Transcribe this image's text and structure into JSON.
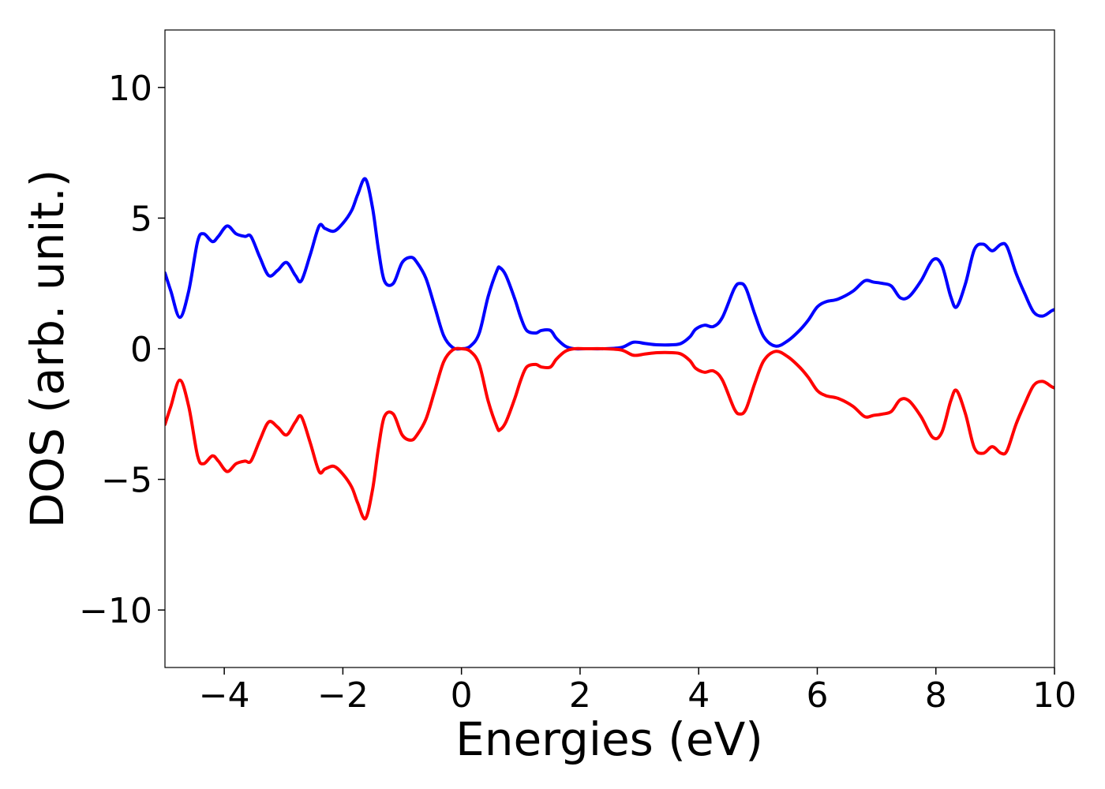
{
  "chart_data": {
    "type": "line",
    "xlabel": "Energies (eV)",
    "ylabel": "DOS (arb. unit.)",
    "xlim": [
      -5,
      10
    ],
    "ylim": [
      -12.2,
      12.2
    ],
    "xticks": [
      -4,
      -2,
      0,
      2,
      4,
      6,
      8,
      10
    ],
    "xtick_labels": [
      "−4",
      "−2",
      "0",
      "2",
      "4",
      "6",
      "8",
      "10"
    ],
    "yticks": [
      -10,
      -5,
      0,
      5,
      10
    ],
    "ytick_labels": [
      "−10",
      "−5",
      "0",
      "5",
      "10"
    ],
    "grid": false,
    "legend": "none",
    "series": [
      {
        "color": "#0000ff",
        "x": [
          -5.0,
          -4.9,
          -4.75,
          -4.6,
          -4.45,
          -4.35,
          -4.2,
          -4.1,
          -3.95,
          -3.8,
          -3.65,
          -3.55,
          -3.4,
          -3.25,
          -3.1,
          -2.95,
          -2.8,
          -2.7,
          -2.55,
          -2.4,
          -2.3,
          -2.15,
          -2.0,
          -1.85,
          -1.75,
          -1.62,
          -1.5,
          -1.4,
          -1.3,
          -1.15,
          -1.0,
          -0.85,
          -0.75,
          -0.6,
          -0.45,
          -0.3,
          -0.15,
          0.0,
          0.15,
          0.3,
          0.45,
          0.6,
          0.65,
          0.75,
          0.9,
          1.0,
          1.1,
          1.25,
          1.35,
          1.5,
          1.6,
          1.75,
          1.9,
          2.1,
          2.4,
          2.7,
          2.9,
          3.1,
          3.3,
          3.55,
          3.7,
          3.85,
          3.95,
          4.1,
          4.25,
          4.4,
          4.6,
          4.7,
          4.8,
          4.95,
          5.1,
          5.3,
          5.5,
          5.7,
          5.85,
          6.0,
          6.15,
          6.35,
          6.6,
          6.8,
          6.95,
          7.1,
          7.25,
          7.4,
          7.55,
          7.75,
          7.95,
          8.1,
          8.25,
          8.35,
          8.5,
          8.65,
          8.8,
          8.95,
          9.1,
          9.2,
          9.35,
          9.5,
          9.65,
          9.8,
          9.95,
          10.0
        ],
        "y": [
          2.9,
          2.2,
          1.2,
          2.2,
          4.1,
          4.4,
          4.1,
          4.3,
          4.7,
          4.4,
          4.3,
          4.3,
          3.5,
          2.8,
          3.0,
          3.3,
          2.8,
          2.6,
          3.6,
          4.7,
          4.6,
          4.5,
          4.8,
          5.3,
          5.9,
          6.5,
          5.4,
          3.8,
          2.6,
          2.5,
          3.3,
          3.5,
          3.3,
          2.7,
          1.6,
          0.5,
          0.05,
          0.0,
          0.1,
          0.6,
          2.0,
          3.0,
          3.1,
          2.8,
          1.9,
          1.2,
          0.7,
          0.6,
          0.7,
          0.7,
          0.4,
          0.1,
          0.0,
          0.0,
          0.0,
          0.05,
          0.25,
          0.2,
          0.15,
          0.15,
          0.2,
          0.45,
          0.75,
          0.9,
          0.85,
          1.2,
          2.3,
          2.5,
          2.3,
          1.3,
          0.45,
          0.1,
          0.3,
          0.7,
          1.1,
          1.6,
          1.8,
          1.9,
          2.2,
          2.6,
          2.55,
          2.5,
          2.4,
          1.95,
          2.0,
          2.6,
          3.4,
          3.2,
          2.0,
          1.6,
          2.5,
          3.8,
          4.0,
          3.75,
          4.0,
          3.9,
          2.9,
          2.1,
          1.4,
          1.25,
          1.45,
          1.5
        ]
      },
      {
        "color": "#ff0000",
        "x": [
          -5.0,
          -4.9,
          -4.75,
          -4.6,
          -4.45,
          -4.35,
          -4.2,
          -4.1,
          -3.95,
          -3.8,
          -3.65,
          -3.55,
          -3.4,
          -3.25,
          -3.1,
          -2.95,
          -2.8,
          -2.7,
          -2.55,
          -2.4,
          -2.3,
          -2.15,
          -2.0,
          -1.85,
          -1.75,
          -1.62,
          -1.5,
          -1.4,
          -1.3,
          -1.15,
          -1.0,
          -0.85,
          -0.75,
          -0.6,
          -0.45,
          -0.3,
          -0.15,
          0.0,
          0.15,
          0.3,
          0.45,
          0.6,
          0.65,
          0.75,
          0.9,
          1.0,
          1.1,
          1.25,
          1.35,
          1.5,
          1.6,
          1.75,
          1.9,
          2.1,
          2.4,
          2.7,
          2.9,
          3.1,
          3.3,
          3.55,
          3.7,
          3.85,
          3.95,
          4.1,
          4.25,
          4.4,
          4.6,
          4.7,
          4.8,
          4.95,
          5.1,
          5.3,
          5.5,
          5.7,
          5.85,
          6.0,
          6.15,
          6.35,
          6.6,
          6.8,
          6.95,
          7.1,
          7.25,
          7.4,
          7.55,
          7.75,
          7.95,
          8.1,
          8.25,
          8.35,
          8.5,
          8.65,
          8.8,
          8.95,
          9.1,
          9.2,
          9.35,
          9.5,
          9.65,
          9.8,
          9.95,
          10.0
        ],
        "y": [
          -2.9,
          -2.2,
          -1.2,
          -2.2,
          -4.1,
          -4.4,
          -4.1,
          -4.3,
          -4.7,
          -4.4,
          -4.3,
          -4.3,
          -3.5,
          -2.8,
          -3.0,
          -3.3,
          -2.8,
          -2.6,
          -3.6,
          -4.7,
          -4.6,
          -4.5,
          -4.8,
          -5.3,
          -5.9,
          -6.5,
          -5.4,
          -3.8,
          -2.6,
          -2.5,
          -3.3,
          -3.5,
          -3.3,
          -2.7,
          -1.6,
          -0.5,
          -0.05,
          0.0,
          -0.1,
          -0.6,
          -2.0,
          -3.0,
          -3.1,
          -2.8,
          -1.9,
          -1.2,
          -0.7,
          -0.6,
          -0.7,
          -0.7,
          -0.4,
          -0.1,
          0.0,
          0.0,
          0.0,
          -0.05,
          -0.25,
          -0.2,
          -0.15,
          -0.15,
          -0.2,
          -0.45,
          -0.75,
          -0.9,
          -0.85,
          -1.2,
          -2.3,
          -2.5,
          -2.3,
          -1.3,
          -0.45,
          -0.1,
          -0.3,
          -0.7,
          -1.1,
          -1.6,
          -1.8,
          -1.9,
          -2.2,
          -2.6,
          -2.55,
          -2.5,
          -2.4,
          -1.95,
          -2.0,
          -2.6,
          -3.4,
          -3.2,
          -2.0,
          -1.6,
          -2.5,
          -3.8,
          -4.0,
          -3.75,
          -4.0,
          -3.9,
          -2.9,
          -2.1,
          -1.4,
          -1.25,
          -1.45,
          -1.5
        ]
      }
    ]
  }
}
